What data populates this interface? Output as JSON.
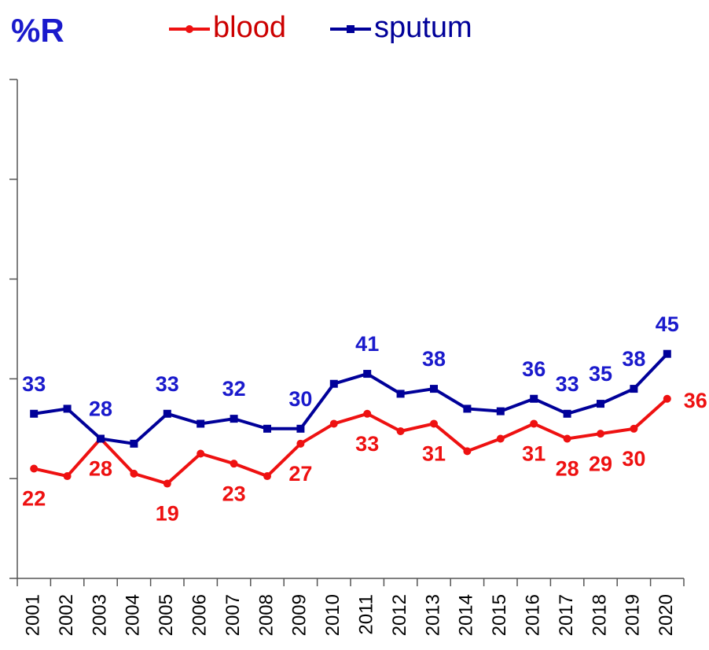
{
  "chart_data": {
    "type": "line",
    "title": "%R",
    "categories": [
      "2001",
      "2002",
      "2003",
      "2004",
      "2005",
      "2006",
      "2007",
      "2008",
      "2009",
      "2010",
      "2011",
      "2012",
      "2013",
      "2014",
      "2015",
      "2016",
      "2017",
      "2018",
      "2019",
      "2020"
    ],
    "series": [
      {
        "name": "blood",
        "color": "#ee1111",
        "values": [
          22,
          20.5,
          28,
          21,
          19,
          25,
          23,
          20.5,
          27,
          31,
          33,
          29.5,
          31,
          25.5,
          28,
          31,
          28,
          29,
          30,
          36
        ],
        "value_labels": [
          "22",
          null,
          "28",
          null,
          "19",
          null,
          "23",
          null,
          "27",
          null,
          "33",
          null,
          "31",
          null,
          null,
          "31",
          "28",
          "29",
          "30",
          "36"
        ]
      },
      {
        "name": "sputum",
        "color": "#000099",
        "values": [
          33,
          34,
          28,
          27,
          33,
          31,
          32,
          30,
          30,
          39,
          41,
          37,
          38,
          34,
          33.5,
          36,
          33,
          35,
          38,
          45
        ],
        "value_labels": [
          "33",
          null,
          "28",
          null,
          "33",
          null,
          "32",
          null,
          "30",
          null,
          "41",
          null,
          "38",
          null,
          null,
          "36",
          "33",
          "35",
          "38",
          "45"
        ]
      }
    ],
    "ylim": [
      0,
      100
    ],
    "yticks": [
      0,
      20,
      40,
      60,
      80,
      100
    ]
  }
}
